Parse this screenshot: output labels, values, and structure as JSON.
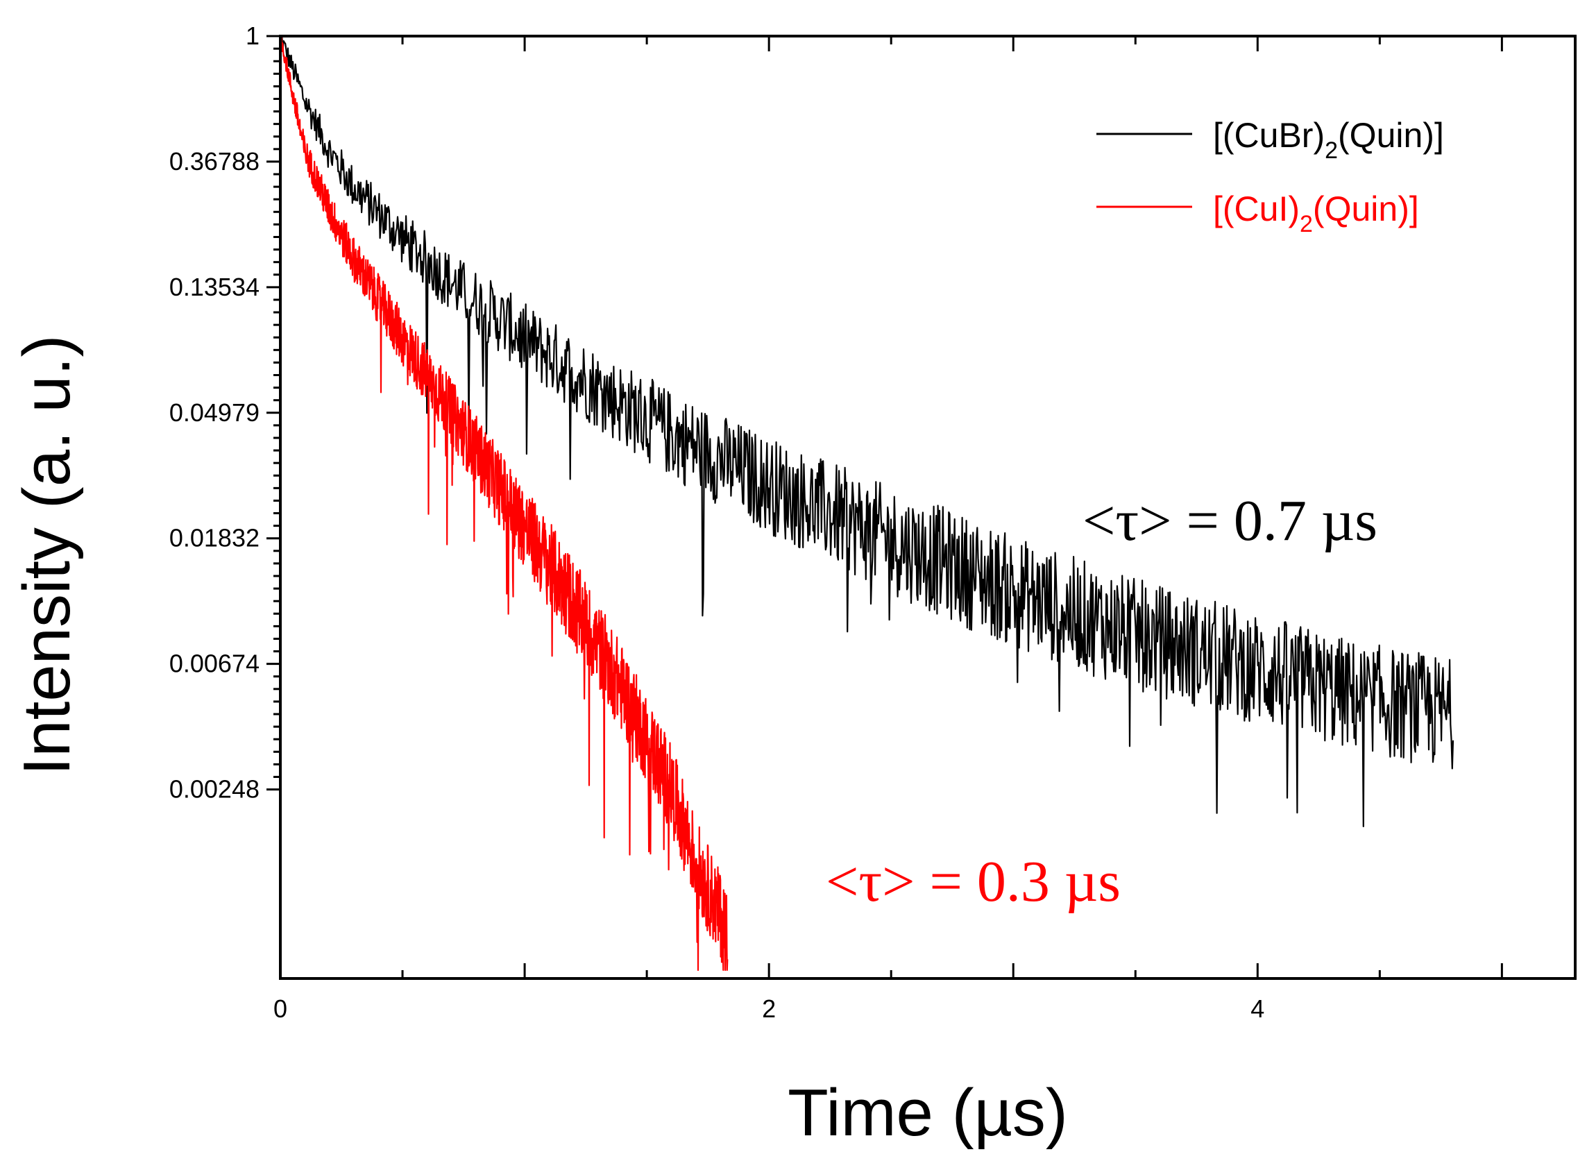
{
  "chart_data": {
    "type": "line",
    "y_scale": "log",
    "xlabel": "Time (µs)",
    "ylabel": "Intensity (a. u.)",
    "xlim": [
      0,
      5.3
    ],
    "ylim": [
      0.00055,
      1
    ],
    "x_ticks": [
      0,
      2,
      4
    ],
    "x_tick_labels": [
      "0",
      "2",
      "4"
    ],
    "y_ticks": [
      1,
      0.36788,
      0.13534,
      0.04979,
      0.01832,
      0.00674,
      0.00248
    ],
    "y_tick_labels": [
      "1",
      "0.36788",
      "0.13534",
      "0.04979",
      "0.01832",
      "0.00674",
      "0.00248"
    ],
    "grid": false,
    "legend_position": "top-right",
    "series": [
      {
        "name": "[(CuBr)2(Quin)]",
        "legend_main": "[(CuBr)",
        "legend_sub": "2",
        "legend_tail": "(Quin)]",
        "color": "#000000",
        "x": [
          0,
          0.1,
          0.2,
          0.3,
          0.5,
          0.7,
          1.0,
          1.3,
          1.6,
          2.0,
          2.5,
          3.0,
          3.5,
          4.0,
          4.4,
          4.8
        ],
        "values": [
          1.0,
          0.6,
          0.4,
          0.3,
          0.2,
          0.14,
          0.09,
          0.06,
          0.042,
          0.028,
          0.018,
          0.012,
          0.0085,
          0.0065,
          0.0052,
          0.0045
        ],
        "noise_amplitude": 0.45,
        "annotation": "<τ> = 0.7 µs"
      },
      {
        "name": "[(CuI)2(Quin)]",
        "legend_main": "[(CuI)",
        "legend_sub": "2",
        "legend_tail": "(Quin)]",
        "color": "#ff0000",
        "x": [
          0,
          0.1,
          0.2,
          0.3,
          0.5,
          0.7,
          1.0,
          1.2,
          1.4,
          1.6,
          1.7,
          1.83
        ],
        "values": [
          1.0,
          0.4,
          0.25,
          0.17,
          0.09,
          0.05,
          0.02,
          0.011,
          0.0055,
          0.0025,
          0.0014,
          0.0008
        ],
        "noise_amplitude": 0.35,
        "annotation": "<τ> = 0.3 µs"
      }
    ]
  }
}
